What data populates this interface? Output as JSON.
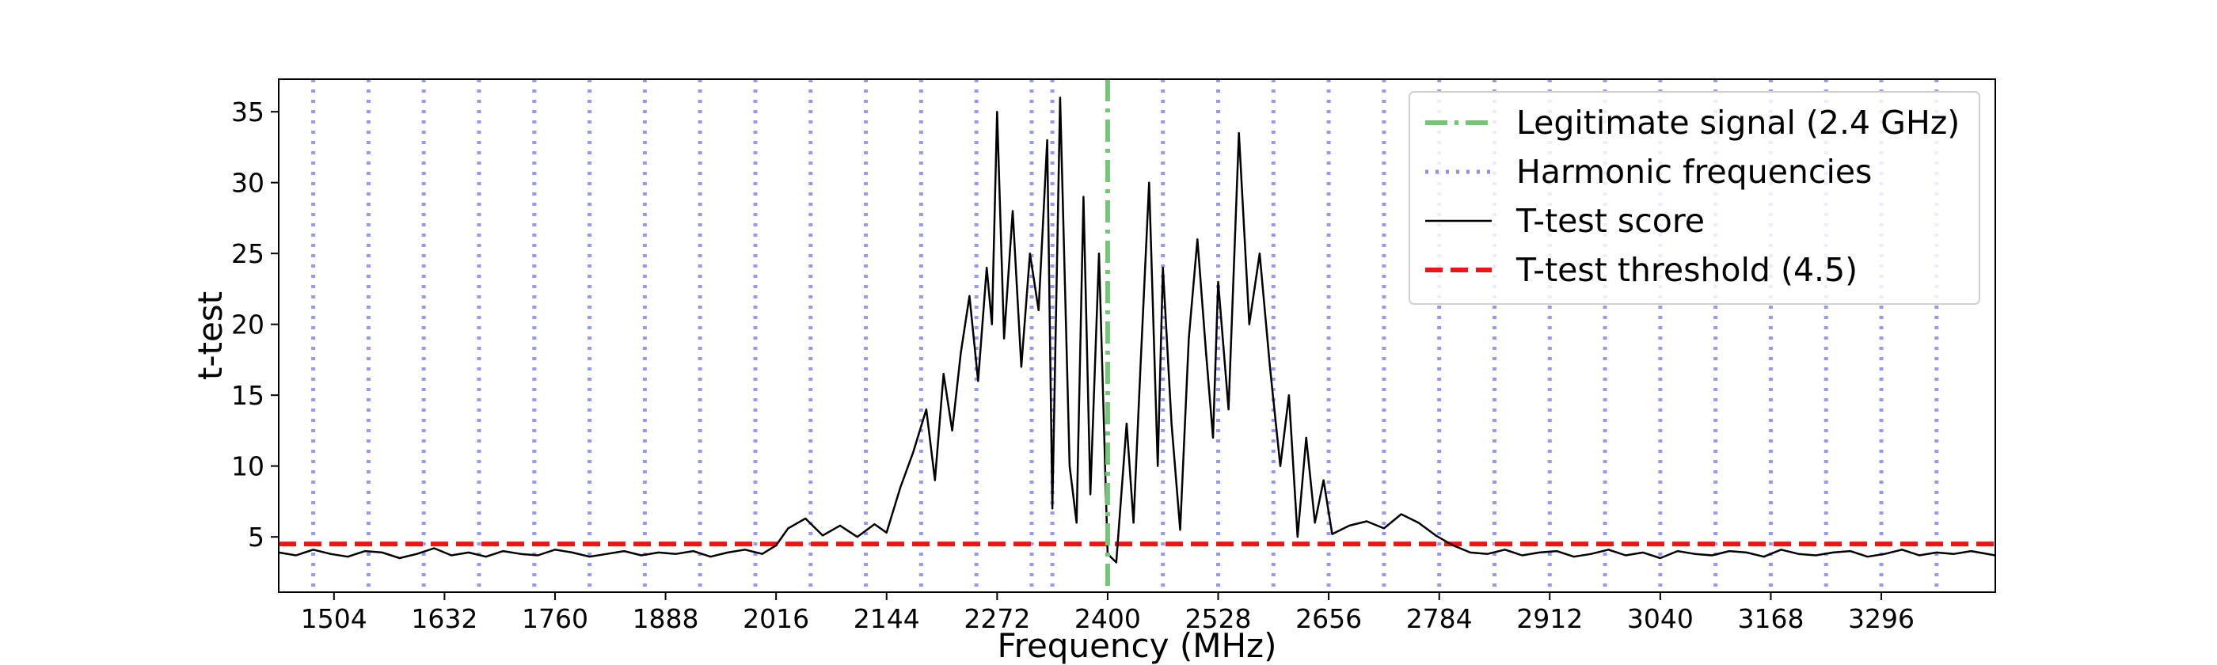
{
  "chart_data": {
    "type": "line",
    "title": "",
    "xlabel": "Frequency (MHz)",
    "ylabel": "t-test",
    "xlim": [
      1440,
      3428
    ],
    "ylim": [
      1.1,
      37.3
    ],
    "x_ticks": [
      1504,
      1632,
      1760,
      1888,
      2016,
      2144,
      2272,
      2400,
      2528,
      2656,
      2784,
      2912,
      3040,
      3168,
      3296
    ],
    "y_ticks": [
      5,
      10,
      15,
      20,
      25,
      30,
      35
    ],
    "grid": false,
    "legend_position": "upper right",
    "legend": [
      {
        "label": "Legitimate signal (2.4 GHz)",
        "style": "dashdot",
        "color": "#76c476"
      },
      {
        "label": "Harmonic frequencies",
        "style": "dotted",
        "color": "#8c8cf5"
      },
      {
        "label": "T-test score",
        "style": "solid",
        "color": "#000000"
      },
      {
        "label": "T-test threshold (4.5)",
        "style": "dashed",
        "color": "#f01414"
      }
    ],
    "legitimate_signal": {
      "x": 2400,
      "color": "#76c476"
    },
    "harmonic_frequencies": [
      1480,
      1544,
      1608,
      1672,
      1736,
      1800,
      1864,
      1928,
      1992,
      2056,
      2120,
      2184,
      2248,
      2312,
      2336,
      2464,
      2528,
      2592,
      2656,
      2720,
      2784,
      2848,
      2912,
      2976,
      3040,
      3104,
      3168,
      3232,
      3296,
      3360
    ],
    "harmonic_color": "#8c8cf5",
    "threshold": {
      "value": 4.5,
      "color": "#f01414"
    },
    "series": [
      {
        "name": "T-test score",
        "color": "#000000",
        "x": [
          1440,
          1460,
          1480,
          1500,
          1520,
          1540,
          1560,
          1580,
          1600,
          1620,
          1640,
          1660,
          1680,
          1700,
          1720,
          1740,
          1760,
          1780,
          1800,
          1820,
          1840,
          1860,
          1880,
          1900,
          1920,
          1940,
          1960,
          1980,
          2000,
          2016,
          2030,
          2050,
          2070,
          2090,
          2110,
          2130,
          2144,
          2160,
          2175,
          2190,
          2200,
          2210,
          2220,
          2230,
          2240,
          2250,
          2260,
          2266,
          2272,
          2280,
          2290,
          2300,
          2310,
          2320,
          2330,
          2336,
          2345,
          2356,
          2364,
          2372,
          2380,
          2390,
          2400,
          2410,
          2422,
          2430,
          2438,
          2448,
          2458,
          2464,
          2474,
          2484,
          2494,
          2504,
          2514,
          2522,
          2528,
          2540,
          2552,
          2564,
          2576,
          2588,
          2600,
          2610,
          2620,
          2630,
          2640,
          2650,
          2660,
          2680,
          2700,
          2720,
          2740,
          2760,
          2780,
          2800,
          2820,
          2840,
          2860,
          2880,
          2900,
          2920,
          2940,
          2960,
          2980,
          3000,
          3020,
          3040,
          3060,
          3080,
          3100,
          3120,
          3140,
          3160,
          3180,
          3200,
          3220,
          3240,
          3260,
          3280,
          3300,
          3320,
          3340,
          3360,
          3380,
          3400,
          3428
        ],
        "y": [
          3.9,
          3.7,
          4.1,
          3.8,
          3.6,
          4.0,
          3.9,
          3.5,
          3.8,
          4.2,
          3.7,
          3.9,
          3.6,
          4.0,
          3.8,
          3.7,
          4.1,
          3.9,
          3.6,
          3.8,
          4.0,
          3.7,
          3.9,
          3.8,
          4.0,
          3.6,
          3.9,
          4.1,
          3.8,
          4.4,
          5.6,
          6.3,
          5.1,
          5.8,
          5.0,
          5.9,
          5.3,
          8.5,
          11.0,
          14.0,
          9.0,
          16.5,
          12.5,
          18.0,
          22.0,
          16.0,
          24.0,
          20.0,
          35.0,
          19.0,
          28.0,
          17.0,
          25.0,
          21.0,
          33.0,
          7.0,
          36.0,
          10.0,
          6.0,
          29.0,
          8.0,
          25.0,
          3.8,
          3.2,
          13.0,
          6.0,
          17.0,
          30.0,
          10.0,
          24.0,
          13.0,
          5.5,
          19.0,
          26.0,
          18.0,
          12.0,
          23.0,
          14.0,
          33.5,
          20.0,
          25.0,
          17.0,
          10.0,
          15.0,
          5.0,
          12.0,
          6.0,
          9.0,
          5.2,
          5.8,
          6.1,
          5.6,
          6.6,
          6.0,
          5.1,
          4.4,
          3.9,
          3.8,
          4.1,
          3.7,
          3.9,
          4.0,
          3.6,
          3.8,
          4.1,
          3.7,
          3.9,
          3.5,
          4.0,
          3.8,
          3.7,
          4.0,
          3.9,
          3.6,
          4.1,
          3.8,
          3.7,
          3.9,
          4.0,
          3.6,
          3.8,
          4.1,
          3.7,
          3.9,
          3.8,
          4.0,
          3.7
        ]
      }
    ]
  }
}
